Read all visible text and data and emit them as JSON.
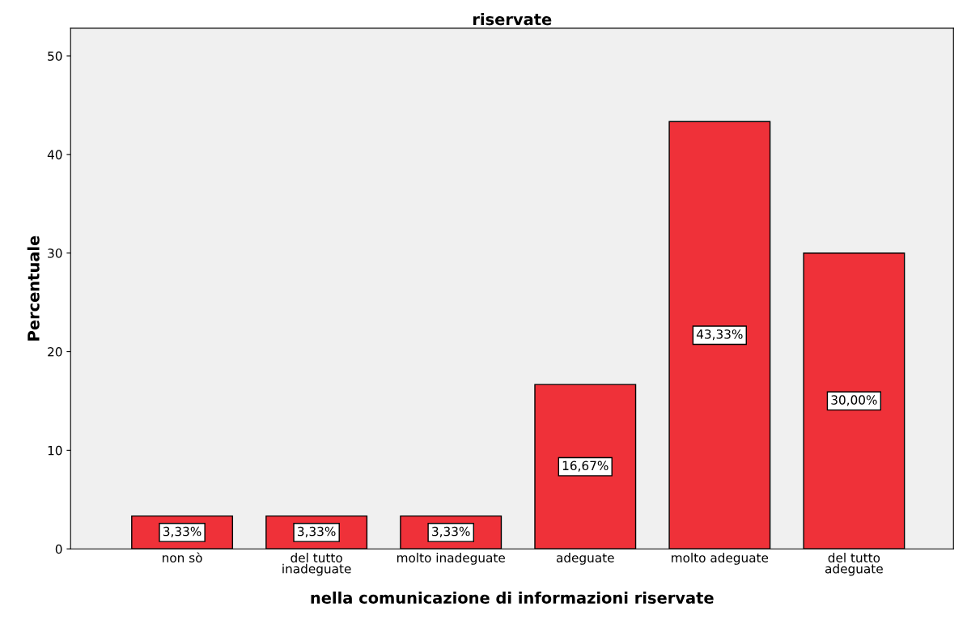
{
  "chart_data": {
    "type": "bar",
    "title": "riservate",
    "xlabel": "nella comunicazione di informazioni riservate",
    "ylabel": "Percentuale",
    "categories": [
      "non sò",
      "del tutto\ninadeguate",
      "molto inadeguate",
      "adeguate",
      "molto adeguate",
      "del tutto\nadeguate"
    ],
    "values": [
      3.33,
      3.33,
      3.33,
      16.67,
      43.33,
      30.0
    ],
    "value_labels": [
      "3,33%",
      "3,33%",
      "3,33%",
      "16,67%",
      "43,33%",
      "30,00%"
    ],
    "color": "#ef3139",
    "ylim": [
      0,
      52.8
    ],
    "yticks": [
      0,
      10,
      20,
      30,
      40,
      50
    ],
    "grid": false,
    "legend": false
  }
}
